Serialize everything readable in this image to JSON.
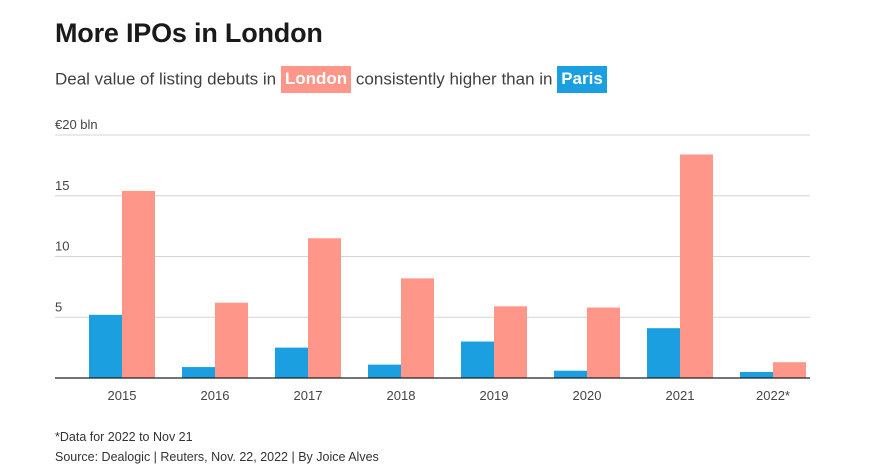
{
  "header": {
    "title": "More IPOs in London",
    "subtitle_pre": "Deal value of listing debuts in",
    "subtitle_mid": "consistently higher than in",
    "london_label": "London",
    "paris_label": "Paris"
  },
  "footer": {
    "note": "*Data for 2022 to Nov 21",
    "source": "Source: Dealogic | Reuters, Nov. 22, 2022 | By Joice Alves"
  },
  "colors": {
    "london": "#ff968a",
    "paris": "#1b9fe0"
  },
  "chart_data": {
    "type": "bar",
    "title": "More IPOs in London",
    "subtitle": "Deal value of listing debuts in London consistently higher than in Paris",
    "categories": [
      "2015",
      "2016",
      "2017",
      "2018",
      "2019",
      "2020",
      "2021",
      "2022*"
    ],
    "series": [
      {
        "name": "Paris",
        "color": "#1b9fe0",
        "values": [
          5.2,
          0.9,
          2.5,
          1.1,
          3.0,
          0.6,
          4.1,
          0.5
        ]
      },
      {
        "name": "London",
        "color": "#ff968a",
        "values": [
          15.4,
          6.2,
          11.5,
          8.2,
          5.9,
          5.8,
          18.4,
          1.3
        ]
      }
    ],
    "ylim": [
      0,
      20
    ],
    "yticks": [
      0,
      5,
      10,
      15,
      20
    ],
    "ytick_labels": [
      "",
      "5",
      "10",
      "15",
      "€20 bln"
    ],
    "xlabel": "",
    "ylabel": "",
    "grid": true,
    "legend": "in subtitle"
  }
}
